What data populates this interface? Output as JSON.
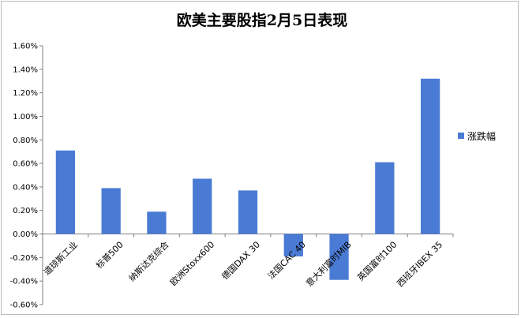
{
  "chart_data": {
    "type": "bar",
    "title": "欧美主要股指2月5日表现",
    "categories": [
      "道琼斯工业",
      "标普500",
      "纳斯达克综合",
      "欧洲Stoxx600",
      "德国DAX 30",
      "法国CAC 40",
      "意大利富时MIB",
      "英国富时100",
      "西班牙IBEX 35"
    ],
    "series": [
      {
        "name": "涨跌幅",
        "values": [
          0.0071,
          0.0039,
          0.0019,
          0.0047,
          0.0037,
          -0.0019,
          -0.0039,
          0.0061,
          0.0132
        ]
      }
    ],
    "y_ticks": [
      "1.60%",
      "1.40%",
      "1.20%",
      "1.00%",
      "0.80%",
      "0.60%",
      "0.40%",
      "0.20%",
      "0.00%",
      "-0.20%",
      "-0.40%",
      "-0.60%"
    ],
    "ylim": [
      -0.006,
      0.016
    ],
    "xlabel": "",
    "ylabel": "",
    "grid": false,
    "legend": "right",
    "bar_color": "#4a7bd4"
  }
}
